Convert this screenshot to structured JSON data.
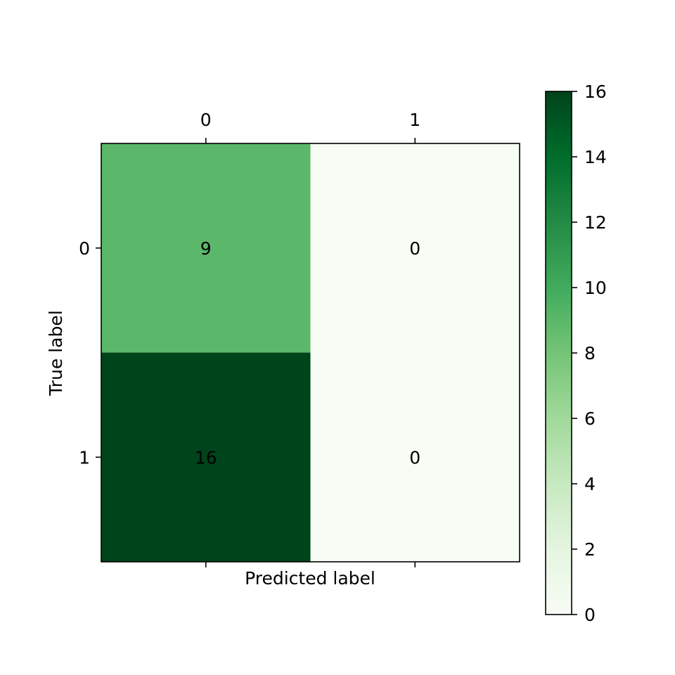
{
  "chart_data": {
    "type": "heatmap",
    "title": "",
    "xlabel": "Predicted label",
    "ylabel": "True label",
    "x_categories": [
      "0",
      "1"
    ],
    "y_categories": [
      "0",
      "1"
    ],
    "values": [
      [
        9,
        0
      ],
      [
        16,
        0
      ]
    ],
    "colormap": "Greens",
    "colorbar": {
      "min": 0,
      "max": 16,
      "ticks": [
        0,
        2,
        4,
        6,
        8,
        10,
        12,
        14,
        16
      ],
      "tick_labels": [
        "0",
        "2",
        "4",
        "6",
        "8",
        "10",
        "12",
        "14",
        "16"
      ]
    },
    "x_ticks_position": "top",
    "grid": false
  }
}
